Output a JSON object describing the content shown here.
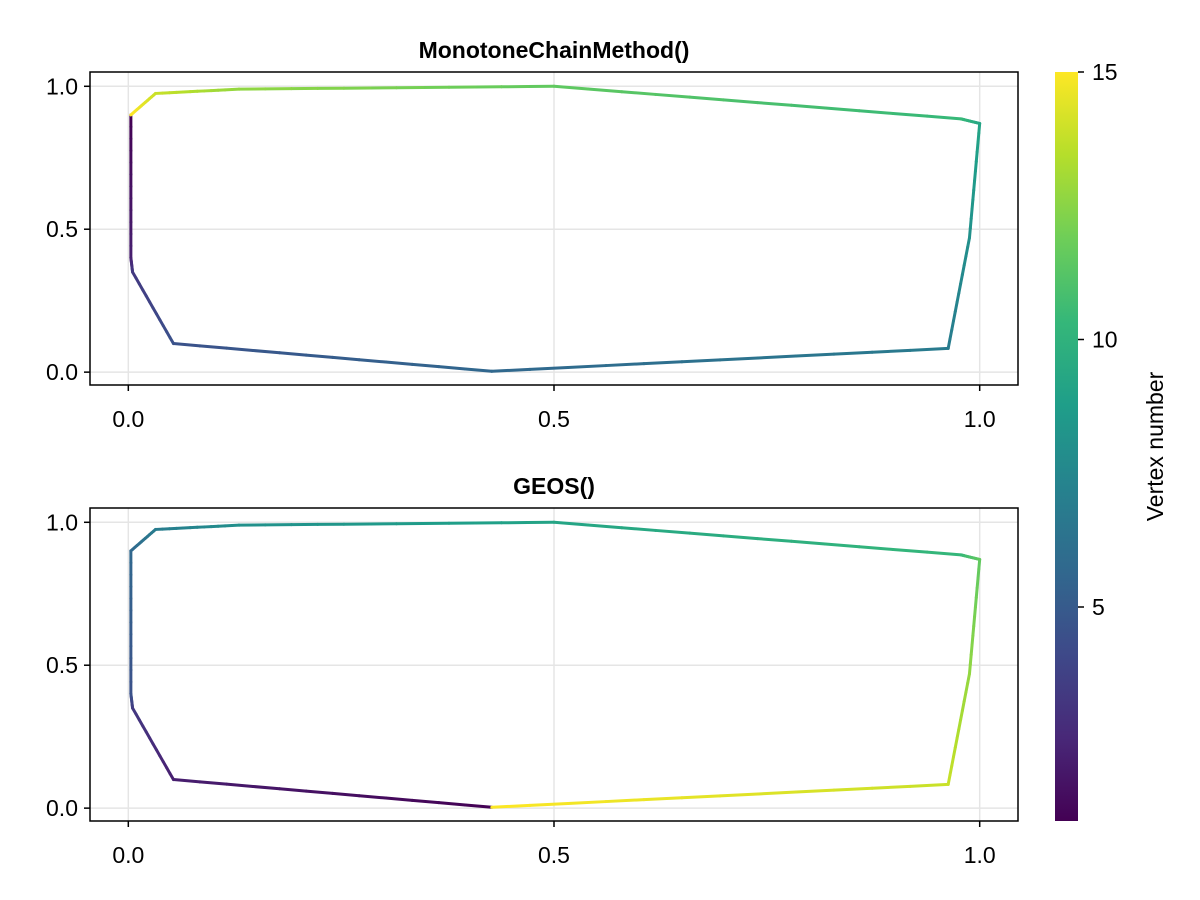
{
  "colors": {
    "viridis": [
      "#440154",
      "#482878",
      "#3e4989",
      "#31688e",
      "#26828e",
      "#1f9e89",
      "#35b779",
      "#6ece58",
      "#b5de2b",
      "#fde725"
    ]
  },
  "chart_data": [
    {
      "type": "line",
      "title": "MonotoneChainMethod()",
      "xlim": [
        -0.045,
        1.045
      ],
      "ylim": [
        -0.045,
        1.05
      ],
      "xticks": [
        0.0,
        0.5,
        1.0
      ],
      "xtick_labels": [
        "0.0",
        "0.5",
        "1.0"
      ],
      "yticks": [
        0.0,
        0.5,
        1.0
      ],
      "ytick_labels": [
        "0.0",
        "0.5",
        "1.0"
      ],
      "grid": true,
      "points": [
        [
          0.003,
          0.9
        ],
        [
          0.003,
          0.4
        ],
        [
          0.005,
          0.35
        ],
        [
          0.053,
          0.1
        ],
        [
          0.427,
          0.003
        ],
        [
          0.963,
          0.083
        ],
        [
          0.988,
          0.47
        ],
        [
          1.0,
          0.87
        ],
        [
          0.978,
          0.886
        ],
        [
          0.5,
          1.0
        ],
        [
          0.13,
          0.99
        ],
        [
          0.032,
          0.975
        ],
        [
          0.003,
          0.9
        ]
      ],
      "vertex_numbers": [
        1,
        2,
        3,
        4,
        5,
        6,
        7,
        8,
        9,
        10,
        11,
        12,
        13,
        14,
        15
      ]
    },
    {
      "type": "line",
      "title": "GEOS()",
      "xlim": [
        -0.045,
        1.045
      ],
      "ylim": [
        -0.045,
        1.05
      ],
      "xticks": [
        0.0,
        0.5,
        1.0
      ],
      "xtick_labels": [
        "0.0",
        "0.5",
        "1.0"
      ],
      "yticks": [
        0.0,
        0.5,
        1.0
      ],
      "ytick_labels": [
        "0.0",
        "0.5",
        "1.0"
      ],
      "grid": true,
      "points": [
        [
          0.427,
          0.003
        ],
        [
          0.053,
          0.1
        ],
        [
          0.005,
          0.35
        ],
        [
          0.003,
          0.4
        ],
        [
          0.003,
          0.9
        ],
        [
          0.032,
          0.975
        ],
        [
          0.13,
          0.99
        ],
        [
          0.5,
          1.0
        ],
        [
          0.978,
          0.886
        ],
        [
          1.0,
          0.87
        ],
        [
          0.988,
          0.47
        ],
        [
          0.963,
          0.083
        ],
        [
          0.427,
          0.003
        ]
      ],
      "vertex_numbers": [
        1,
        2,
        3,
        4,
        5,
        6,
        7,
        8,
        9,
        10,
        11,
        12,
        13,
        14,
        15
      ]
    }
  ],
  "colorbar": {
    "label": "Vertex number",
    "range": [
      1,
      15
    ],
    "ticks": [
      5,
      10,
      15
    ],
    "tick_labels": [
      "5",
      "10",
      "15"
    ],
    "colormap": "viridis"
  }
}
